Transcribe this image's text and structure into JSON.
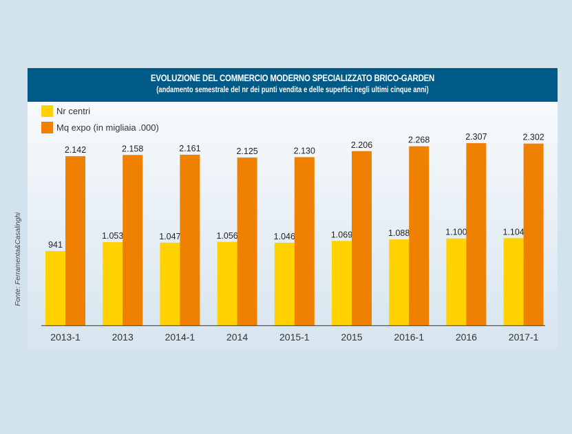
{
  "colors": {
    "background": "#d3e3ee",
    "header": "#005a87",
    "nr_centri": "#ffd200",
    "mq_expo": "#f08000",
    "axis": "#555555"
  },
  "source_note": "Fonte: Ferramenta&Casalinghi",
  "chart_data": {
    "type": "bar",
    "title": "EVOLUZIONE DEL COMMERCIO MODERNO SPECIALIZZATO BRICO-GARDEN",
    "subtitle": "(andamento semestrale del nr dei punti vendita e delle superfici negli ultimi cinque anni)",
    "xlabel": "",
    "ylabel": "",
    "ylim": [
      0,
      2400
    ],
    "grid": false,
    "legend_position": "top-left",
    "categories": [
      "2013-1",
      "2013",
      "2014-1",
      "2014",
      "2015-1",
      "2015",
      "2016-1",
      "2016",
      "2017-1"
    ],
    "series": [
      {
        "name": "Nr centri",
        "color": "#ffd200",
        "values": [
          941,
          1053,
          1047,
          1056,
          1046,
          1069,
          1088,
          1100,
          1104
        ],
        "labels": [
          "941",
          "1.053",
          "1.047",
          "1.056",
          "1.046",
          "1.069",
          "1.088",
          "1.100",
          "1.104"
        ]
      },
      {
        "name": "Mq expo (in migliaia .000)",
        "color": "#f08000",
        "values": [
          2142,
          2158,
          2161,
          2125,
          2130,
          2206,
          2268,
          2307,
          2302
        ],
        "labels": [
          "2.142",
          "2.158",
          "2.161",
          "2.125",
          "2.130",
          "2.206",
          "2.268",
          "2.307",
          "2.302"
        ]
      }
    ]
  }
}
